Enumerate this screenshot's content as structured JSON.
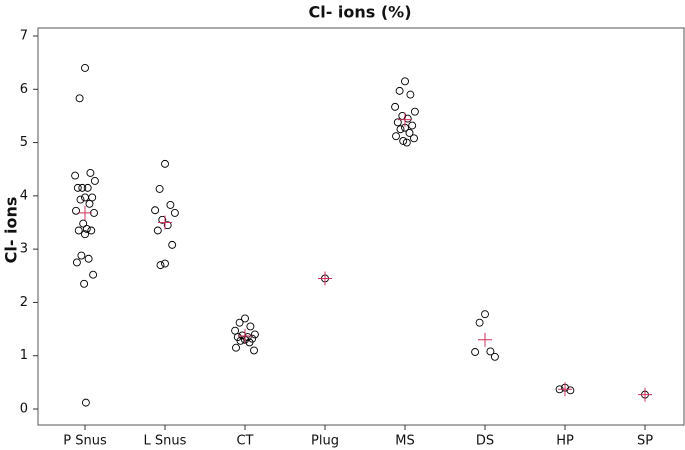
{
  "chart_data": {
    "type": "individual-value",
    "title": "Cl- ions (%)",
    "y_label": "Cl- ions",
    "categories": [
      "P Snus",
      "L Snus",
      "CT",
      "Plug",
      "MS",
      "DS",
      "HP",
      "SP"
    ],
    "values": [
      [
        6.4,
        5.83,
        4.43,
        4.38,
        4.28,
        4.15,
        4.15,
        4.15,
        3.97,
        3.97,
        3.93,
        3.85,
        3.72,
        3.68,
        3.48,
        3.38,
        3.35,
        3.35,
        3.28,
        2.88,
        2.82,
        2.75,
        2.52,
        2.35,
        0.12
      ],
      [
        4.6,
        4.13,
        3.83,
        3.73,
        3.68,
        3.55,
        3.45,
        3.35,
        3.08,
        2.73,
        2.7
      ],
      [
        1.7,
        1.62,
        1.55,
        1.47,
        1.4,
        1.38,
        1.35,
        1.35,
        1.32,
        1.3,
        1.28,
        1.25,
        1.15,
        1.1
      ],
      [
        2.45
      ],
      [
        6.15,
        5.97,
        5.9,
        5.67,
        5.58,
        5.5,
        5.45,
        5.38,
        5.32,
        5.28,
        5.25,
        5.18,
        5.12,
        5.08,
        5.03,
        5.0
      ],
      [
        1.78,
        1.62,
        1.08,
        1.07,
        0.98
      ],
      [
        0.4,
        0.37,
        0.35
      ],
      [
        0.27
      ]
    ],
    "means": [
      3.68,
      3.5,
      1.37,
      2.45,
      5.43,
      1.3,
      0.37,
      0.27
    ],
    "color": "#000000",
    "mean_color": "#d0305a",
    "ylim": [
      -0.3,
      7.15
    ],
    "yticks": [
      0,
      1,
      2,
      3,
      4,
      5,
      6,
      7
    ],
    "grid": false
  }
}
